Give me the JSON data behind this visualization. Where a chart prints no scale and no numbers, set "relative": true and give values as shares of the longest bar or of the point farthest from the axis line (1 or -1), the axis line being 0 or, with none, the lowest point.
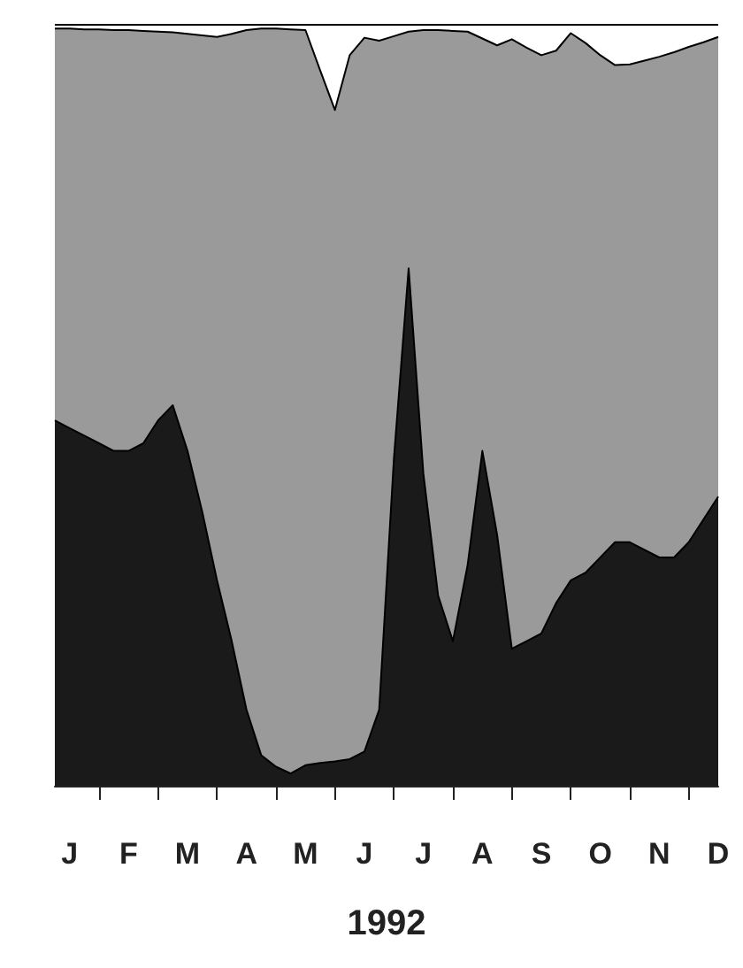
{
  "chart_data": {
    "type": "area",
    "stacked": true,
    "relative": true,
    "xlabel": "1992",
    "categories": [
      null,
      "J",
      null,
      null,
      null,
      "F",
      null,
      null,
      null,
      "M",
      null,
      null,
      null,
      "A",
      null,
      null,
      null,
      "M",
      null,
      null,
      null,
      "J",
      null,
      null,
      null,
      "J",
      null,
      null,
      null,
      "A",
      null,
      null,
      null,
      "S",
      null,
      null,
      null,
      "O",
      null,
      null,
      null,
      "N",
      null,
      null,
      null,
      "D"
    ],
    "series": [
      {
        "color": "#1a1a1a",
        "values": [
          0.48,
          0.47,
          0.46,
          0.45,
          0.44,
          0.44,
          0.45,
          0.48,
          0.5,
          0.44,
          0.36,
          0.27,
          0.19,
          0.1,
          0.04,
          0.025,
          0.016,
          0.027,
          0.03,
          0.032,
          0.035,
          0.045,
          0.1,
          0.43,
          0.68,
          0.41,
          0.25,
          0.19,
          0.29,
          0.44,
          0.33,
          0.18,
          0.19,
          0.2,
          0.24,
          0.27,
          0.28,
          0.3,
          0.32,
          0.32,
          0.31,
          0.3,
          0.3,
          0.32,
          0.35,
          0.38
        ]
      },
      {
        "color": "#9a9a9a",
        "values": [
          0.515,
          0.525,
          0.534,
          0.544,
          0.553,
          0.553,
          0.542,
          0.511,
          0.49,
          0.548,
          0.626,
          0.714,
          0.798,
          0.893,
          0.955,
          0.97,
          0.978,
          0.966,
          0.91,
          0.856,
          0.925,
          0.938,
          0.879,
          0.555,
          0.311,
          0.583,
          0.743,
          0.802,
          0.701,
          0.542,
          0.643,
          0.801,
          0.78,
          0.76,
          0.726,
          0.719,
          0.696,
          0.66,
          0.627,
          0.628,
          0.643,
          0.658,
          0.664,
          0.651,
          0.627,
          0.604
        ]
      },
      {
        "color": "#ffffff",
        "values": [
          0.005,
          0.005,
          0.006,
          0.006,
          0.007,
          0.007,
          0.008,
          0.009,
          0.01,
          0.012,
          0.014,
          0.016,
          0.012,
          0.007,
          0.005,
          0.005,
          0.006,
          0.007,
          0.06,
          0.112,
          0.04,
          0.017,
          0.021,
          0.015,
          0.009,
          0.007,
          0.007,
          0.008,
          0.009,
          0.018,
          0.027,
          0.019,
          0.03,
          0.04,
          0.034,
          0.011,
          0.024,
          0.04,
          0.053,
          0.052,
          0.047,
          0.042,
          0.036,
          0.029,
          0.023,
          0.016
        ]
      }
    ]
  }
}
